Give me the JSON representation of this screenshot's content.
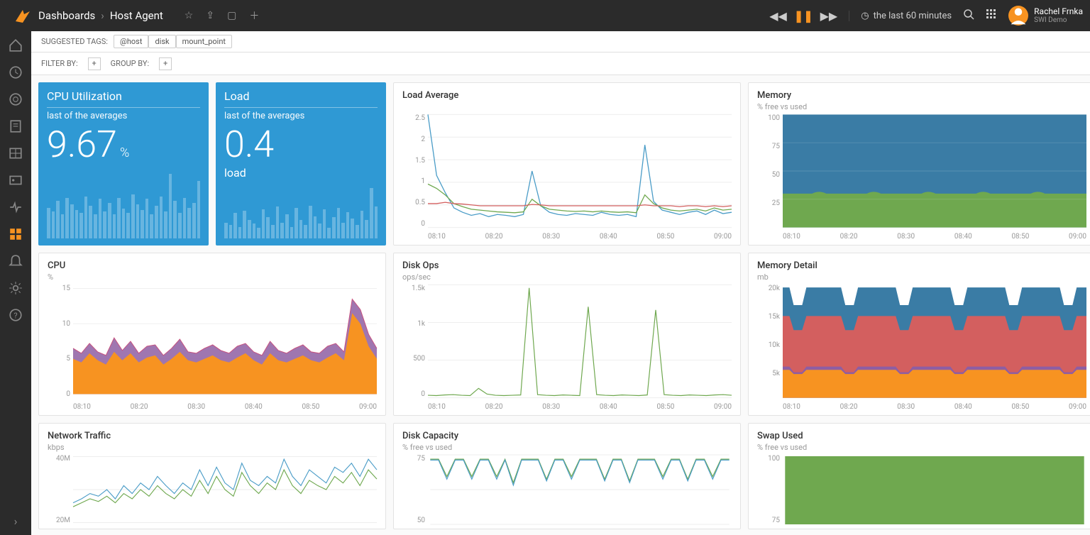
{
  "header": {
    "breadcrumb_root": "Dashboards",
    "breadcrumb_page": "Host Agent",
    "time_range": "the last 60 minutes",
    "user_name": "Rachel Frnka",
    "user_sub": "SWI Demo"
  },
  "tagbar": {
    "label": "SUGGESTED TAGS:",
    "tags": [
      "@host",
      "disk",
      "mount_point"
    ]
  },
  "filterbar": {
    "filter_label": "FILTER BY:",
    "group_label": "GROUP BY:"
  },
  "cpu_util": {
    "title": "CPU Utilization",
    "subtitle": "last of the averages",
    "value": "9.67",
    "unit": "%",
    "bg": "#2f99d4",
    "bars": [
      45,
      40,
      55,
      35,
      60,
      50,
      42,
      38,
      62,
      48,
      35,
      58,
      40,
      52,
      36,
      60,
      44,
      38,
      65,
      50,
      42,
      58,
      36,
      48,
      62,
      40,
      95,
      55,
      38,
      60,
      45,
      52,
      85
    ]
  },
  "load": {
    "title": "Load",
    "subtitle": "last of the averages",
    "value": "0.4",
    "unit": "load",
    "bg": "#2f99d4",
    "bars": [
      30,
      25,
      48,
      22,
      52,
      35,
      28,
      20,
      55,
      40,
      25,
      60,
      30,
      45,
      22,
      58,
      35,
      25,
      62,
      42,
      28,
      55,
      20,
      40,
      58,
      30,
      50,
      38,
      25,
      52,
      35,
      95,
      60
    ]
  },
  "xaxis_labels": [
    "08:10",
    "08:20",
    "08:30",
    "08:40",
    "08:50",
    "09:00"
  ],
  "load_avg": {
    "title": "Load Average",
    "ylabels": [
      "2.5",
      "2",
      "1.5",
      "1",
      "0.5",
      "0"
    ],
    "lines": {
      "blue": {
        "color": "#4a9cc7",
        "values": [
          2.6,
          1.2,
          0.8,
          0.45,
          0.35,
          0.28,
          0.32,
          0.25,
          0.3,
          0.28,
          0.25,
          0.3,
          1.3,
          0.5,
          0.35,
          0.3,
          0.28,
          0.32,
          0.3,
          0.28,
          0.35,
          0.3,
          0.28,
          0.3,
          0.25,
          1.9,
          0.6,
          0.4,
          0.35,
          0.3,
          0.35,
          0.38,
          0.3,
          0.4,
          0.32,
          0.35
        ]
      },
      "green": {
        "color": "#6fa84f",
        "values": [
          1.0,
          0.9,
          0.75,
          0.55,
          0.48,
          0.42,
          0.4,
          0.38,
          0.36,
          0.35,
          0.34,
          0.36,
          0.65,
          0.5,
          0.42,
          0.4,
          0.38,
          0.37,
          0.38,
          0.36,
          0.38,
          0.36,
          0.35,
          0.36,
          0.34,
          0.75,
          0.55,
          0.45,
          0.4,
          0.38,
          0.4,
          0.42,
          0.38,
          0.45,
          0.4,
          0.42
        ]
      },
      "red": {
        "color": "#d35f5f",
        "values": [
          0.55,
          0.55,
          0.58,
          0.55,
          0.54,
          0.52,
          0.5,
          0.5,
          0.5,
          0.5,
          0.5,
          0.5,
          0.53,
          0.52,
          0.5,
          0.5,
          0.5,
          0.5,
          0.5,
          0.5,
          0.5,
          0.5,
          0.5,
          0.5,
          0.5,
          0.52,
          0.5,
          0.5,
          0.5,
          0.48,
          0.5,
          0.5,
          0.48,
          0.5,
          0.48,
          0.5
        ]
      }
    },
    "ymax": 2.6
  },
  "memory": {
    "title": "Memory",
    "subtitle": "% free vs used",
    "ylabels": [
      "100",
      "75",
      "50",
      "25",
      ""
    ],
    "used": {
      "color": "#3a7ca5",
      "value": 70
    },
    "free": {
      "color": "#6fa84f",
      "value": 30
    },
    "bumps": [
      0.12,
      0.3,
      0.48,
      0.66,
      0.84
    ]
  },
  "cpu": {
    "title": "CPU",
    "subtitle": "%",
    "ylabels": [
      "15",
      "10",
      "5",
      "0"
    ],
    "ymax": 15,
    "series": {
      "purple": {
        "color": "#8e5ea2",
        "values": [
          6.5,
          5.8,
          7.2,
          6.0,
          5.5,
          8.0,
          6.2,
          7.5,
          5.8,
          6.8,
          7.0,
          5.5,
          6.5,
          7.8,
          6.0,
          5.8,
          6.5,
          7.0,
          6.2,
          5.8,
          6.8,
          7.2,
          6.0,
          5.5,
          7.5,
          6.2,
          5.8,
          6.5,
          7.0,
          6.0,
          5.8,
          6.8,
          7.2,
          6.0,
          13.5,
          12.0,
          8.5,
          6.5
        ]
      },
      "orange": {
        "color": "#f79321",
        "values": [
          5.0,
          4.5,
          5.8,
          4.8,
          4.2,
          6.0,
          4.8,
          5.8,
          4.5,
          5.2,
          5.5,
          4.2,
          5.0,
          6.0,
          4.8,
          4.5,
          5.0,
          5.5,
          4.8,
          4.5,
          5.2,
          5.8,
          4.8,
          4.2,
          5.8,
          4.8,
          4.5,
          5.0,
          5.5,
          4.8,
          4.5,
          5.2,
          5.8,
          4.8,
          11.5,
          10.0,
          6.8,
          5.0
        ]
      }
    }
  },
  "disk_ops": {
    "title": "Disk Ops",
    "subtitle": "ops/sec",
    "ylabels": [
      "1.5k",
      "1k",
      "500",
      "0"
    ],
    "ymax": 1800,
    "line": {
      "color": "#6fa84f",
      "values": [
        40,
        35,
        45,
        50,
        40,
        35,
        150,
        60,
        40,
        35,
        40,
        45,
        1750,
        50,
        40,
        35,
        45,
        40,
        35,
        1450,
        50,
        40,
        35,
        45,
        40,
        35,
        45,
        1400,
        50,
        40,
        35,
        45,
        40,
        35,
        45,
        50,
        40
      ]
    }
  },
  "memory_detail": {
    "title": "Memory Detail",
    "subtitle": "mb",
    "ylabels": [
      "20k",
      "15k",
      "10k",
      "5k",
      ""
    ],
    "ymax": 21000,
    "stack": [
      {
        "color": "#f79321",
        "base": 5200
      },
      {
        "color": "#8e5ea2",
        "base": 5800
      },
      {
        "color": "#d35f5f",
        "base": 15200
      },
      {
        "color": "#3a7ca5",
        "base": 20500
      }
    ],
    "dips": [
      0.05,
      0.22,
      0.4,
      0.58,
      0.76,
      0.94
    ]
  },
  "network": {
    "title": "Network Traffic",
    "subtitle": "kbps",
    "ylabels": [
      "40M",
      "20M"
    ],
    "ymax": 50,
    "lines": {
      "blue": {
        "color": "#4a9cc7",
        "values": [
          15,
          18,
          22,
          20,
          25,
          18,
          28,
          22,
          30,
          25,
          35,
          28,
          22,
          30,
          25,
          40,
          28,
          42,
          30,
          25,
          45,
          32,
          28,
          35,
          30,
          48,
          35,
          28,
          40,
          35,
          30,
          42,
          38,
          45,
          35,
          48,
          40
        ]
      },
      "green": {
        "color": "#6fa84f",
        "values": [
          12,
          15,
          18,
          16,
          20,
          15,
          22,
          18,
          25,
          20,
          28,
          22,
          18,
          25,
          20,
          32,
          22,
          35,
          25,
          20,
          38,
          28,
          22,
          30,
          25,
          40,
          28,
          22,
          32,
          28,
          25,
          35,
          30,
          38,
          28,
          40,
          33
        ]
      }
    }
  },
  "disk_cap": {
    "title": "Disk Capacity",
    "subtitle": "% free vs used",
    "ylabels": [
      "75",
      "50"
    ],
    "colors": {
      "green": "#6fa84f",
      "blue": "#4a9cc7"
    },
    "green_vals": [
      75,
      75,
      55,
      75,
      75,
      55,
      75,
      75,
      55,
      75,
      48,
      75,
      75,
      75,
      52,
      75,
      75,
      55,
      75,
      75,
      75,
      52,
      75,
      75,
      50,
      75,
      75,
      75,
      55,
      75,
      75,
      52,
      75,
      75,
      55,
      75,
      75
    ],
    "blue_vals": [
      74,
      74,
      52,
      74,
      74,
      52,
      74,
      74,
      52,
      74,
      45,
      74,
      74,
      74,
      50,
      74,
      74,
      52,
      74,
      74,
      74,
      50,
      74,
      74,
      48,
      74,
      74,
      74,
      52,
      74,
      74,
      50,
      74,
      74,
      52,
      74,
      74
    ]
  },
  "swap": {
    "title": "Swap Used",
    "subtitle": "% free vs used",
    "ylabels": [
      "100",
      "75"
    ],
    "color": "#6fa84f"
  }
}
